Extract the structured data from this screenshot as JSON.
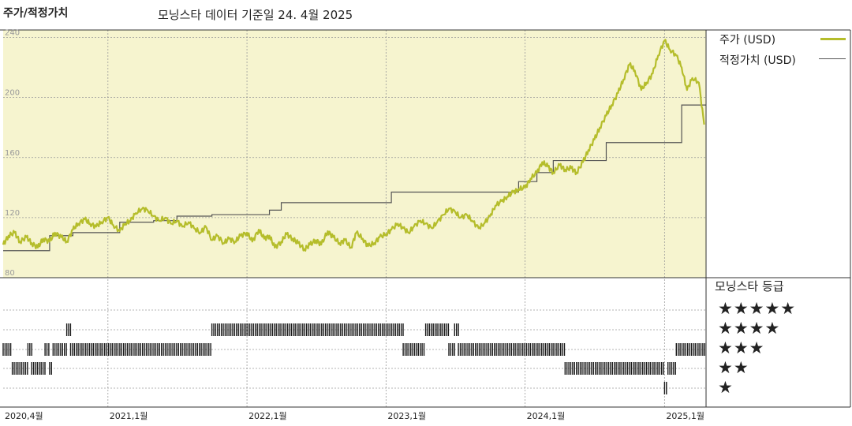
{
  "header": {
    "left_title": "주가/적정가치",
    "center_title": "모닝스타 데이터 기준일 24. 4월 2025"
  },
  "legend": {
    "price_label": "주가 (USD)",
    "fair_label": "적정가치 (USD)",
    "price_color": "#b5bd2b",
    "fair_color": "#555555"
  },
  "rating_panel": {
    "title": "모닝스타 등급",
    "rows": [
      "★★★★★",
      "★★★★",
      "★★★",
      "★★",
      "★"
    ]
  },
  "chart_data": {
    "type": "line",
    "xlabels": [
      "2020,4월",
      "2021,1월",
      "2022,1월",
      "2023,1월",
      "2024,1월",
      "2025,1월"
    ],
    "yticks": [
      240,
      200,
      160,
      120,
      80
    ],
    "ylim": [
      80,
      245
    ],
    "grid": true,
    "series": [
      {
        "name": "주가 (USD)",
        "color": "#b5bd2b",
        "points": [
          [
            "2020-04-01",
            102
          ],
          [
            "2020-04-15",
            108
          ],
          [
            "2020-05-01",
            110
          ],
          [
            "2020-05-15",
            104
          ],
          [
            "2020-06-01",
            107
          ],
          [
            "2020-06-15",
            103
          ],
          [
            "2020-07-01",
            100
          ],
          [
            "2020-07-15",
            106
          ],
          [
            "2020-08-01",
            104
          ],
          [
            "2020-08-15",
            110
          ],
          [
            "2020-09-01",
            107
          ],
          [
            "2020-09-15",
            104
          ],
          [
            "2020-10-01",
            112
          ],
          [
            "2020-10-15",
            116
          ],
          [
            "2020-11-01",
            119
          ],
          [
            "2020-11-15",
            116
          ],
          [
            "2020-12-01",
            114
          ],
          [
            "2020-12-15",
            117
          ],
          [
            "2021-01-01",
            120
          ],
          [
            "2021-01-15",
            115
          ],
          [
            "2021-02-01",
            111
          ],
          [
            "2021-02-15",
            116
          ],
          [
            "2021-03-01",
            118
          ],
          [
            "2021-03-15",
            123
          ],
          [
            "2021-04-01",
            126
          ],
          [
            "2021-04-15",
            125
          ],
          [
            "2021-05-01",
            121
          ],
          [
            "2021-05-15",
            118
          ],
          [
            "2021-06-01",
            120
          ],
          [
            "2021-06-15",
            116
          ],
          [
            "2021-07-01",
            118
          ],
          [
            "2021-07-15",
            114
          ],
          [
            "2021-08-01",
            117
          ],
          [
            "2021-08-15",
            113
          ],
          [
            "2021-09-01",
            110
          ],
          [
            "2021-09-15",
            114
          ],
          [
            "2021-10-01",
            105
          ],
          [
            "2021-10-15",
            108
          ],
          [
            "2021-11-01",
            103
          ],
          [
            "2021-11-15",
            106
          ],
          [
            "2021-12-01",
            104
          ],
          [
            "2021-12-15",
            108
          ],
          [
            "2022-01-01",
            110
          ],
          [
            "2022-01-15",
            104
          ],
          [
            "2022-02-01",
            112
          ],
          [
            "2022-02-15",
            106
          ],
          [
            "2022-03-01",
            108
          ],
          [
            "2022-03-15",
            100
          ],
          [
            "2022-04-01",
            104
          ],
          [
            "2022-04-15",
            109
          ],
          [
            "2022-05-01",
            106
          ],
          [
            "2022-05-15",
            103
          ],
          [
            "2022-06-01",
            99
          ],
          [
            "2022-06-15",
            102
          ],
          [
            "2022-07-01",
            105
          ],
          [
            "2022-07-15",
            102
          ],
          [
            "2022-08-01",
            111
          ],
          [
            "2022-08-15",
            107
          ],
          [
            "2022-09-01",
            103
          ],
          [
            "2022-09-15",
            105
          ],
          [
            "2022-10-01",
            100
          ],
          [
            "2022-10-15",
            110
          ],
          [
            "2022-11-01",
            106
          ],
          [
            "2022-11-15",
            101
          ],
          [
            "2022-12-01",
            103
          ],
          [
            "2022-12-15",
            107
          ],
          [
            "2023-01-01",
            109
          ],
          [
            "2023-01-15",
            112
          ],
          [
            "2023-02-01",
            116
          ],
          [
            "2023-02-15",
            113
          ],
          [
            "2023-03-01",
            110
          ],
          [
            "2023-03-15",
            114
          ],
          [
            "2023-04-01",
            118
          ],
          [
            "2023-04-15",
            116
          ],
          [
            "2023-05-01",
            113
          ],
          [
            "2023-05-15",
            117
          ],
          [
            "2023-06-01",
            122
          ],
          [
            "2023-06-15",
            126
          ],
          [
            "2023-07-01",
            124
          ],
          [
            "2023-07-15",
            120
          ],
          [
            "2023-08-01",
            122
          ],
          [
            "2023-08-15",
            118
          ],
          [
            "2023-09-01",
            113
          ],
          [
            "2023-09-15",
            116
          ],
          [
            "2023-10-01",
            121
          ],
          [
            "2023-10-15",
            128
          ],
          [
            "2023-11-01",
            131
          ],
          [
            "2023-11-15",
            134
          ],
          [
            "2023-12-01",
            137
          ],
          [
            "2023-12-15",
            139
          ],
          [
            "2024-01-01",
            140
          ],
          [
            "2024-01-15",
            146
          ],
          [
            "2024-02-01",
            150
          ],
          [
            "2024-02-15",
            157
          ],
          [
            "2024-03-01",
            154
          ],
          [
            "2024-03-15",
            150
          ],
          [
            "2024-04-01",
            155
          ],
          [
            "2024-04-15",
            152
          ],
          [
            "2024-05-01",
            153
          ],
          [
            "2024-05-15",
            150
          ],
          [
            "2024-06-01",
            157
          ],
          [
            "2024-06-15",
            165
          ],
          [
            "2024-07-01",
            172
          ],
          [
            "2024-07-15",
            180
          ],
          [
            "2024-08-01",
            188
          ],
          [
            "2024-08-15",
            195
          ],
          [
            "2024-09-01",
            203
          ],
          [
            "2024-09-15",
            212
          ],
          [
            "2024-10-01",
            222
          ],
          [
            "2024-10-15",
            218
          ],
          [
            "2024-11-01",
            205
          ],
          [
            "2024-11-15",
            210
          ],
          [
            "2024-12-01",
            216
          ],
          [
            "2024-12-15",
            228
          ],
          [
            "2025-01-01",
            238
          ],
          [
            "2025-01-15",
            232
          ],
          [
            "2025-02-01",
            228
          ],
          [
            "2025-02-15",
            220
          ],
          [
            "2025-03-01",
            205
          ],
          [
            "2025-03-15",
            213
          ],
          [
            "2025-04-01",
            210
          ],
          [
            "2025-04-15",
            182
          ]
        ]
      },
      {
        "name": "적정가치 (USD)",
        "color": "#555555",
        "steps": [
          [
            "2020-04-01",
            98
          ],
          [
            "2020-08-01",
            108
          ],
          [
            "2020-10-01",
            110
          ],
          [
            "2021-02-01",
            117
          ],
          [
            "2021-05-01",
            118
          ],
          [
            "2021-07-01",
            121
          ],
          [
            "2021-10-01",
            122
          ],
          [
            "2022-03-01",
            125
          ],
          [
            "2022-04-01",
            130
          ],
          [
            "2023-01-15",
            137
          ],
          [
            "2023-12-15",
            144
          ],
          [
            "2024-02-01",
            150
          ],
          [
            "2024-03-15",
            158
          ],
          [
            "2024-08-01",
            170
          ],
          [
            "2025-01-01",
            170
          ],
          [
            "2025-02-15",
            195
          ],
          [
            "2025-04-20",
            195
          ]
        ]
      }
    ],
    "rating_history": [
      {
        "from": "2020-04-01",
        "to": "2020-04-25",
        "stars": 3
      },
      {
        "from": "2020-04-25",
        "to": "2020-06-05",
        "stars": 2
      },
      {
        "from": "2020-06-05",
        "to": "2020-06-15",
        "stars": 3
      },
      {
        "from": "2020-06-15",
        "to": "2020-07-20",
        "stars": 2
      },
      {
        "from": "2020-07-20",
        "to": "2020-08-01",
        "stars": 3
      },
      {
        "from": "2020-08-01",
        "to": "2020-08-10",
        "stars": 2
      },
      {
        "from": "2020-08-10",
        "to": "2020-09-15",
        "stars": 3
      },
      {
        "from": "2020-09-15",
        "to": "2020-09-25",
        "stars": 4
      },
      {
        "from": "2020-09-25",
        "to": "2021-10-01",
        "stars": 3
      },
      {
        "from": "2021-10-01",
        "to": "2023-02-15",
        "stars": 4
      },
      {
        "from": "2023-02-15",
        "to": "2023-04-15",
        "stars": 3
      },
      {
        "from": "2023-04-15",
        "to": "2023-06-15",
        "stars": 4
      },
      {
        "from": "2023-06-15",
        "to": "2023-06-30",
        "stars": 3
      },
      {
        "from": "2023-06-30",
        "to": "2023-07-10",
        "stars": 4
      },
      {
        "from": "2023-07-10",
        "to": "2024-04-15",
        "stars": 3
      },
      {
        "from": "2024-04-15",
        "to": "2025-01-01",
        "stars": 2
      },
      {
        "from": "2025-01-01",
        "to": "2025-01-10",
        "stars": 1
      },
      {
        "from": "2025-01-10",
        "to": "2025-02-01",
        "stars": 2
      },
      {
        "from": "2025-02-01",
        "to": "2025-04-20",
        "stars": 3
      }
    ]
  }
}
